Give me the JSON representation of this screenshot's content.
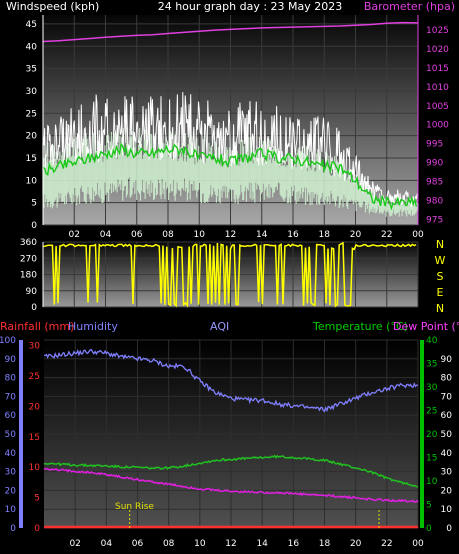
{
  "header": {
    "windspeed_label": "Windspeed (kph)",
    "graph_title": "24 hour graph day : 23 May 2023",
    "barometer_label": "Barometer (hpa)"
  },
  "panel2": {
    "compass": [
      "N",
      "W",
      "S",
      "E",
      "N"
    ]
  },
  "panel3": {
    "rainfall_label": "Rainfall (mm)",
    "humidity_label": "Humidity",
    "aqi_label": "AQI",
    "temperature_label": "Temperature (°C)",
    "dewpoint_label": "Dew Point (°C",
    "sunrise_label": "Sun Rise"
  },
  "colors": {
    "windspeed": "#ffffff",
    "gust_band": "#cfeecf",
    "wind_avg": "#19c819",
    "barometer": "#e040e0",
    "direction": "#ffff00",
    "humidity": "#8080ff",
    "temperature": "#20c020",
    "dewpoint": "#e020e0",
    "rainfall": "#ff3030",
    "aqi_label": "#9898ff",
    "right_axis": "#00c000"
  },
  "chart_data": [
    {
      "type": "line",
      "name": "wind-barometer",
      "x_ticks": [
        "02",
        "04",
        "06",
        "08",
        "10",
        "12",
        "14",
        "16",
        "18",
        "20",
        "22",
        "00"
      ],
      "y_left_ticks": [
        0,
        5,
        10,
        15,
        20,
        25,
        30,
        35,
        40,
        45
      ],
      "ylim_left": [
        0,
        47
      ],
      "y_right_ticks": [
        975,
        980,
        985,
        990,
        995,
        1000,
        1005,
        1010,
        1015,
        1020,
        1025
      ],
      "ylim_right": [
        973.5,
        1029
      ],
      "xlim": [
        0,
        24
      ],
      "series": [
        {
          "role": "barometer",
          "x": [
            0,
            1,
            2,
            3,
            4,
            5,
            6,
            7,
            8,
            9,
            10,
            11,
            12,
            13,
            14,
            15,
            16,
            17,
            18,
            19,
            20,
            21,
            22,
            23,
            24
          ],
          "values": [
            1022.0,
            1022.2,
            1022.5,
            1022.8,
            1023.1,
            1023.4,
            1023.6,
            1023.8,
            1024.1,
            1024.4,
            1024.7,
            1025.0,
            1025.2,
            1025.4,
            1025.6,
            1025.7,
            1025.8,
            1025.9,
            1026.0,
            1026.1,
            1026.3,
            1026.5,
            1026.8,
            1027.0,
            1026.9
          ]
        },
        {
          "role": "gust_max",
          "x": [
            0,
            1,
            2,
            3,
            4,
            5,
            6,
            7,
            8,
            9,
            10,
            11,
            12,
            13,
            14,
            15,
            16,
            17,
            18,
            19,
            20,
            21,
            22,
            23,
            24
          ],
          "values": [
            22,
            24,
            27,
            30,
            29,
            32,
            31,
            30,
            31,
            30,
            29,
            28,
            27,
            28,
            28,
            27,
            26,
            26,
            25,
            22,
            16,
            10,
            8,
            8,
            7
          ]
        },
        {
          "role": "wind_upper",
          "x": [
            0,
            1,
            2,
            3,
            4,
            5,
            6,
            7,
            8,
            9,
            10,
            11,
            12,
            13,
            14,
            15,
            16,
            17,
            18,
            19,
            20,
            21,
            22,
            23,
            24
          ],
          "values": [
            18,
            18,
            19,
            20,
            20,
            21,
            21,
            20,
            21,
            20,
            19,
            19,
            18,
            19,
            19,
            18,
            18,
            17,
            16,
            15,
            12,
            8,
            6,
            6,
            5
          ]
        },
        {
          "role": "wind_avg",
          "x": [
            0,
            1,
            2,
            3,
            4,
            5,
            6,
            7,
            8,
            9,
            10,
            11,
            12,
            13,
            14,
            15,
            16,
            17,
            18,
            19,
            20,
            21,
            22,
            23,
            24
          ],
          "values": [
            12,
            13,
            14,
            15,
            16,
            17,
            16,
            16,
            17,
            17,
            15,
            15,
            14,
            15,
            16,
            15,
            15,
            14,
            13,
            13,
            10,
            6,
            5,
            5,
            5
          ]
        },
        {
          "role": "wind_lower",
          "x": [
            0,
            1,
            2,
            3,
            4,
            5,
            6,
            7,
            8,
            9,
            10,
            11,
            12,
            13,
            14,
            15,
            16,
            17,
            18,
            19,
            20,
            21,
            22,
            23,
            24
          ],
          "values": [
            6,
            6,
            7,
            8,
            8,
            9,
            9,
            9,
            9,
            9,
            8,
            8,
            7,
            8,
            8,
            8,
            8,
            7,
            7,
            6,
            5,
            4,
            3,
            3,
            3
          ]
        }
      ]
    },
    {
      "type": "line",
      "name": "wind-direction",
      "y_ticks": [
        0,
        90,
        180,
        270,
        360
      ],
      "ylim": [
        0,
        360
      ],
      "xlim": [
        0,
        24
      ],
      "series": [
        {
          "role": "direction",
          "x": [
            0,
            1,
            2,
            3,
            4,
            5,
            6,
            7,
            8,
            9,
            10,
            11,
            12,
            13,
            14,
            15,
            16,
            17,
            18,
            19,
            20,
            21,
            22,
            23,
            24
          ],
          "values": [
            340,
            345,
            340,
            345,
            340,
            343,
            342,
            340,
            30,
            330,
            20,
            320,
            15,
            340,
            340,
            345,
            330,
            20,
            330,
            15,
            340,
            340,
            330,
            345,
            340
          ]
        }
      ]
    },
    {
      "type": "line",
      "name": "temperature-humidity-rain",
      "x_ticks": [
        "02",
        "04",
        "06",
        "08",
        "10",
        "12",
        "14",
        "16",
        "18",
        "20",
        "22",
        "00"
      ],
      "y_left_ticks": [
        0,
        10,
        20,
        30,
        40,
        50,
        60,
        70,
        80,
        90,
        100
      ],
      "y_rain_ticks": [
        0,
        5,
        10,
        15,
        20,
        25,
        30
      ],
      "y_right_ticks": [
        0,
        5,
        10,
        15,
        20,
        25,
        30,
        35,
        40
      ],
      "y_far_right_ticks": [
        0,
        10,
        20,
        30,
        40,
        50,
        60,
        70,
        80,
        90
      ],
      "ylim_humidity": [
        0,
        100
      ],
      "ylim_temp": [
        0,
        40
      ],
      "xlim": [
        0,
        24
      ],
      "series": [
        {
          "role": "humidity",
          "x": [
            0,
            1,
            2,
            3,
            4,
            5,
            6,
            7,
            8,
            9,
            10,
            11,
            12,
            13,
            14,
            15,
            16,
            17,
            18,
            19,
            20,
            21,
            22,
            23,
            24
          ],
          "values": [
            91,
            92,
            93,
            94,
            93,
            91,
            90,
            89,
            86,
            86,
            78,
            72,
            69,
            68,
            68,
            66,
            65,
            64,
            63,
            66,
            69,
            72,
            74,
            76,
            76
          ]
        },
        {
          "role": "temperature",
          "x": [
            0,
            1,
            2,
            3,
            4,
            5,
            6,
            7,
            8,
            9,
            10,
            11,
            12,
            13,
            14,
            15,
            16,
            17,
            18,
            19,
            20,
            21,
            22,
            23,
            24
          ],
          "values": [
            13.8,
            13.6,
            13.4,
            13.3,
            13.2,
            13.0,
            12.9,
            12.7,
            12.8,
            13.2,
            13.8,
            14.4,
            14.6,
            14.8,
            15.0,
            15.2,
            15.0,
            14.7,
            14.4,
            13.6,
            12.8,
            11.9,
            10.6,
            9.6,
            8.9
          ]
        },
        {
          "role": "dewpoint",
          "x": [
            0,
            1,
            2,
            3,
            4,
            5,
            6,
            7,
            8,
            9,
            10,
            11,
            12,
            13,
            14,
            15,
            16,
            17,
            18,
            19,
            20,
            21,
            22,
            23,
            24
          ],
          "values": [
            12.5,
            12.3,
            12.1,
            11.8,
            11.4,
            10.8,
            10.3,
            9.8,
            9.3,
            8.8,
            8.3,
            8.0,
            7.8,
            7.7,
            7.6,
            7.5,
            7.3,
            7.1,
            6.9,
            6.7,
            6.4,
            6.1,
            5.9,
            5.8,
            5.7
          ]
        },
        {
          "role": "rainfall",
          "x": [
            0,
            24
          ],
          "values": [
            0,
            0
          ]
        }
      ]
    }
  ]
}
